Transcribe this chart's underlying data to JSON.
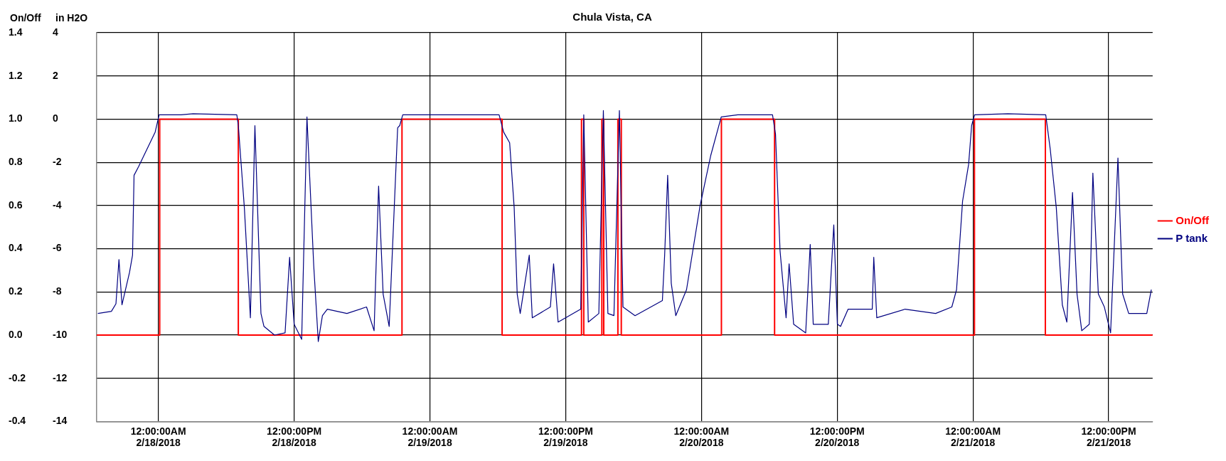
{
  "chart_data": {
    "type": "line",
    "title": "Chula Vista, CA",
    "ylabel": "On/Off",
    "y2label": "in H2O",
    "xlim": [
      "2018-02-17T18:33",
      "2018-02-21T15:53"
    ],
    "xticks": [
      {
        "value": "2018-02-18T00:00",
        "label": "12:00:00AM 2/18/2018"
      },
      {
        "value": "2018-02-18T12:00",
        "label": "12:00:00PM 2/18/2018"
      },
      {
        "value": "2018-02-19T00:00",
        "label": "12:00:00AM 2/19/2018"
      },
      {
        "value": "2018-02-19T12:00",
        "label": "12:00:00PM 2/19/2018"
      },
      {
        "value": "2018-02-20T00:00",
        "label": "12:00:00AM 2/20/2018"
      },
      {
        "value": "2018-02-20T12:00",
        "label": "12:00:00PM 2/20/2018"
      },
      {
        "value": "2018-02-21T00:00",
        "label": "12:00:00AM 2/21/2018"
      },
      {
        "value": "2018-02-21T12:00",
        "label": "12:00:00PM 2/21/2018"
      }
    ],
    "ylim": [
      -0.4,
      1.4
    ],
    "yticks": [
      -0.4,
      -0.2,
      {
        "value": 0,
        "label": "0.0"
      },
      0.2,
      0.4,
      0.6,
      0.8,
      {
        "value": 1,
        "label": "1.0"
      },
      1.2,
      1.4
    ],
    "y2lim": [
      -14,
      4
    ],
    "y2ticks": [
      -14,
      -12,
      -10,
      -8,
      -6,
      -4,
      -2,
      0,
      2,
      4
    ],
    "grid": true,
    "legend": "right",
    "marker": "none",
    "series": [
      {
        "name": "On/Off",
        "type": "step",
        "color": "#ff0000",
        "x": [
          "2018-02-17T18:33",
          "2018-02-18T00:07",
          "2018-02-18T07:04",
          "2018-02-18T21:32",
          "2018-02-19T06:23",
          "2018-02-19T13:24",
          "2018-02-19T13:36",
          "2018-02-19T15:12",
          "2018-02-19T15:22",
          "2018-02-19T16:37",
          "2018-02-19T16:55",
          "2018-02-20T01:46",
          "2018-02-20T06:28",
          "2018-02-21T00:08",
          "2018-02-21T06:24",
          "2018-02-21T15:53"
        ],
        "values": [
          0,
          1,
          0,
          1,
          0,
          1,
          0,
          1,
          0,
          1,
          0,
          1,
          0,
          1,
          0,
          0
        ]
      },
      {
        "name": "P tank",
        "axis": "y2",
        "color": "#000080",
        "x": [
          "2018-02-17T18:39",
          "2018-02-17T19:51",
          "2018-02-17T20:15",
          "2018-02-17T20:31",
          "2018-02-17T20:47",
          "2018-02-17T21:27",
          "2018-02-17T21:43",
          "2018-02-17T21:51",
          "2018-02-17T22:15",
          "2018-02-17T23:43",
          "2018-02-18T00:04",
          "2018-02-18T02:00",
          "2018-02-18T03:04",
          "2018-02-18T06:56",
          "2018-02-18T07:04",
          "2018-02-18T07:36",
          "2018-02-18T08:08",
          "2018-02-18T08:32",
          "2018-02-18T09:04",
          "2018-02-18T09:20",
          "2018-02-18T10:16",
          "2018-02-18T11:12",
          "2018-02-18T11:36",
          "2018-02-18T12:00",
          "2018-02-18T12:40",
          "2018-02-18T13:08",
          "2018-02-18T13:44",
          "2018-02-18T14:08",
          "2018-02-18T14:30",
          "2018-02-18T14:56",
          "2018-02-18T16:40",
          "2018-02-18T18:24",
          "2018-02-18T19:04",
          "2018-02-18T19:28",
          "2018-02-18T19:52",
          "2018-02-18T20:24",
          "2018-02-18T21:09",
          "2018-02-18T21:20",
          "2018-02-18T21:36",
          "2018-02-19T01:51",
          "2018-02-19T06:07",
          "2018-02-19T06:31",
          "2018-02-19T07:03",
          "2018-02-19T07:27",
          "2018-02-19T07:43",
          "2018-02-19T07:59",
          "2018-02-19T08:47",
          "2018-02-19T09:03",
          "2018-02-19T10:39",
          "2018-02-19T10:56",
          "2018-02-19T11:20",
          "2018-02-19T13:20",
          "2018-02-19T13:36",
          "2018-02-19T14:00",
          "2018-02-19T14:56",
          "2018-02-19T15:20",
          "2018-02-19T15:44",
          "2018-02-19T16:16",
          "2018-02-19T16:45",
          "2018-02-19T17:04",
          "2018-02-19T18:08",
          "2018-02-19T20:33",
          "2018-02-19T20:45",
          "2018-02-19T21:01",
          "2018-02-19T21:20",
          "2018-02-19T21:44",
          "2018-02-19T22:17",
          "2018-02-19T22:41",
          "2018-02-19T23:53",
          "2018-02-20T00:49",
          "2018-02-20T01:45",
          "2018-02-20T03:13",
          "2018-02-20T06:17",
          "2018-02-20T06:33",
          "2018-02-20T06:57",
          "2018-02-20T07:29",
          "2018-02-20T07:45",
          "2018-02-20T08:09",
          "2018-02-20T09:13",
          "2018-02-20T09:37",
          "2018-02-20T09:53",
          "2018-02-20T11:13",
          "2018-02-20T11:42",
          "2018-02-20T12:01",
          "2018-02-20T12:18",
          "2018-02-20T12:58",
          "2018-02-20T15:06",
          "2018-02-20T15:14",
          "2018-02-20T15:30",
          "2018-02-20T18:00",
          "2018-02-20T20:42",
          "2018-02-20T22:08",
          "2018-02-20T22:33",
          "2018-02-20T23:05",
          "2018-02-20T23:37",
          "2018-02-20T23:53",
          "2018-02-21T00:09",
          "2018-02-21T03:05",
          "2018-02-21T06:26",
          "2018-02-21T06:50",
          "2018-02-21T07:22",
          "2018-02-21T07:54",
          "2018-02-21T08:18",
          "2018-02-21T08:48",
          "2018-02-21T09:12",
          "2018-02-21T09:37",
          "2018-02-21T10:17",
          "2018-02-21T10:36",
          "2018-02-21T11:05",
          "2018-02-21T11:37",
          "2018-02-21T12:10",
          "2018-02-21T12:49",
          "2018-02-21T13:14",
          "2018-02-21T13:46",
          "2018-02-21T15:22",
          "2018-02-21T15:46"
        ],
        "values": [
          -9.0,
          -8.9,
          -8.55,
          -6.5,
          -8.6,
          -7.1,
          -6.3,
          -2.6,
          -2.2,
          -0.6,
          0.2,
          0.2,
          0.25,
          0.2,
          -0.3,
          -4.1,
          -9.2,
          -0.3,
          -9.0,
          -9.6,
          -10.0,
          -9.9,
          -6.4,
          -9.5,
          -10.2,
          0.1,
          -6.8,
          -10.3,
          -9.1,
          -8.8,
          -9.0,
          -8.7,
          -9.8,
          -3.1,
          -8.1,
          -9.6,
          -0.4,
          -0.3,
          0.2,
          0.2,
          0.2,
          -0.6,
          -1.1,
          -4.1,
          -8.1,
          -9.0,
          -6.3,
          -9.2,
          -8.7,
          -6.7,
          -9.4,
          -8.8,
          0.2,
          -9.4,
          -9.0,
          0.4,
          -9.0,
          -9.1,
          0.4,
          -8.7,
          -9.1,
          -8.4,
          -6.3,
          -2.6,
          -7.6,
          -9.1,
          -8.4,
          -7.9,
          -4.0,
          -1.7,
          0.1,
          0.2,
          0.2,
          -0.7,
          -6.1,
          -9.2,
          -6.7,
          -9.5,
          -9.9,
          -5.8,
          -9.5,
          -9.5,
          -4.9,
          -9.5,
          -9.6,
          -8.8,
          -8.8,
          -6.4,
          -9.2,
          -8.8,
          -9.0,
          -8.7,
          -7.9,
          -3.8,
          -2.1,
          -0.3,
          0.2,
          0.25,
          0.2,
          -1.4,
          -4.1,
          -8.6,
          -9.4,
          -3.4,
          -8.1,
          -9.8,
          -9.5,
          -2.5,
          -8.1,
          -8.7,
          -9.9,
          -1.8,
          -8.1,
          -9.0,
          -9.0,
          -7.9
        ]
      }
    ]
  }
}
